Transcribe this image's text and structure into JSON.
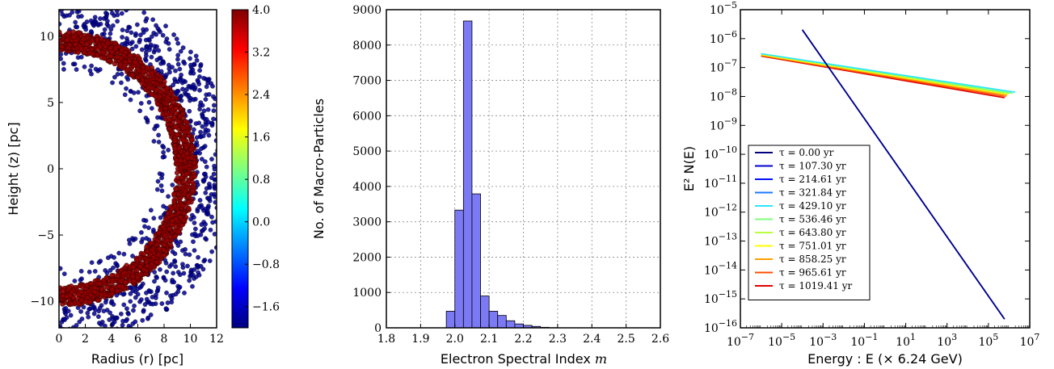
{
  "chart_data": [
    {
      "type": "scatter",
      "xlabel": "Radius (r) [pc]",
      "ylabel": "Height (z) [pc]",
      "xlim": [
        0,
        12
      ],
      "ylim": [
        -12,
        12
      ],
      "x_ticks": [
        "0",
        "2",
        "4",
        "6",
        "8",
        "10",
        "12"
      ],
      "y_ticks": [
        "10",
        "5",
        "0",
        "−5",
        "−10"
      ],
      "shell": {
        "center_x": 0,
        "center_z": 0,
        "inner_radius": 8.9,
        "outer_radius": 10.4,
        "value": 4.0
      },
      "outer_scatter_max_radius": 13.5,
      "inner_scatter_min_radius": 7.5,
      "colorbar": {
        "min": -2.0,
        "max": 4.0,
        "ticks": [
          "4.0",
          "3.2",
          "2.4",
          "1.6",
          "0.8",
          "0.0",
          "−0.8",
          "−1.6"
        ]
      }
    },
    {
      "type": "bar",
      "xlabel": "Electron Spectral Index",
      "xlabel_symbol": "m",
      "ylabel": "No. of Macro-Particles",
      "xlim": [
        1.8,
        2.6
      ],
      "ylim": [
        0,
        9000
      ],
      "bin_width": 0.025,
      "bins": [
        {
          "left": 1.975,
          "count": 470
        },
        {
          "left": 2.0,
          "count": 3330
        },
        {
          "left": 2.025,
          "count": 8680
        },
        {
          "left": 2.05,
          "count": 3790
        },
        {
          "left": 2.075,
          "count": 900
        },
        {
          "left": 2.1,
          "count": 470
        },
        {
          "left": 2.125,
          "count": 350
        },
        {
          "left": 2.15,
          "count": 200
        },
        {
          "left": 2.175,
          "count": 110
        },
        {
          "left": 2.2,
          "count": 70
        },
        {
          "left": 2.225,
          "count": 40
        },
        {
          "left": 2.25,
          "count": 15
        },
        {
          "left": 2.275,
          "count": 5
        }
      ],
      "x_ticks": [
        "1.8",
        "1.9",
        "2.0",
        "2.1",
        "2.2",
        "2.3",
        "2.4",
        "2.5",
        "2.6"
      ],
      "y_ticks": [
        "0",
        "1000",
        "2000",
        "3000",
        "4000",
        "5000",
        "6000",
        "7000",
        "8000",
        "9000"
      ],
      "bar_color": "#7b79f4"
    },
    {
      "type": "line",
      "scale": "log-log",
      "xlabel": "Energy : E (× 6.24 GeV)",
      "ylabel": "E² N(E)",
      "xlim_exp": [
        -7,
        7
      ],
      "ylim_exp": [
        -16,
        -5
      ],
      "x_tick_exps": [
        -7,
        -5,
        -3,
        -1,
        1,
        3,
        5,
        7
      ],
      "y_tick_exps": [
        -16,
        -15,
        -14,
        -13,
        -12,
        -11,
        -10,
        -9,
        -8,
        -7,
        -6,
        -5
      ],
      "legend_location": "lower-left",
      "series": [
        {
          "name": "τ = 0.00 yr",
          "color": "#000080",
          "points": [
            [
              0.0001,
              2e-06
            ],
            [
              600000,
              2e-16
            ]
          ]
        },
        {
          "name": "τ = 107.30 yr",
          "color": "#0000d0",
          "points": [
            [
              0.0001,
              2e-06
            ],
            [
              600000,
              2e-16
            ]
          ]
        },
        {
          "name": "τ = 214.61 yr",
          "color": "#0010ff",
          "points": [
            [
              0.0001,
              2e-06
            ],
            [
              600000,
              2e-16
            ]
          ]
        },
        {
          "name": "τ = 321.84 yr",
          "color": "#1a78ff",
          "points": [
            [
              0.0001,
              2e-06
            ],
            [
              600000,
              2e-16
            ]
          ]
        },
        {
          "name": "τ = 429.10 yr",
          "color": "#29e6ff",
          "points": [
            [
              1e-06,
              3e-07
            ],
            [
              2000000,
              1.4e-08
            ]
          ]
        },
        {
          "name": "τ = 536.46 yr",
          "color": "#7dff7a",
          "points": [
            [
              1e-06,
              3e-07
            ],
            [
              1500000,
              1.3e-08
            ]
          ]
        },
        {
          "name": "τ = 643.80 yr",
          "color": "#b8ff3c",
          "points": [
            [
              1e-06,
              2.9e-07
            ],
            [
              1000000,
              1.25e-08
            ]
          ]
        },
        {
          "name": "τ = 751.01 yr",
          "color": "#ffff00",
          "points": [
            [
              1e-06,
              2.8e-07
            ],
            [
              900000,
              1.2e-08
            ]
          ]
        },
        {
          "name": "τ = 858.25 yr",
          "color": "#ffa000",
          "points": [
            [
              1e-06,
              2.7e-07
            ],
            [
              800000,
              1.1e-08
            ]
          ]
        },
        {
          "name": "τ = 965.61 yr",
          "color": "#ff4c00",
          "points": [
            [
              1e-06,
              2.6e-07
            ],
            [
              700000,
              1e-08
            ]
          ]
        },
        {
          "name": "τ = 1019.41 yr",
          "color": "#e00000",
          "points": [
            [
              1e-06,
              2.5e-07
            ],
            [
              600000,
              9e-09
            ]
          ]
        }
      ]
    }
  ]
}
